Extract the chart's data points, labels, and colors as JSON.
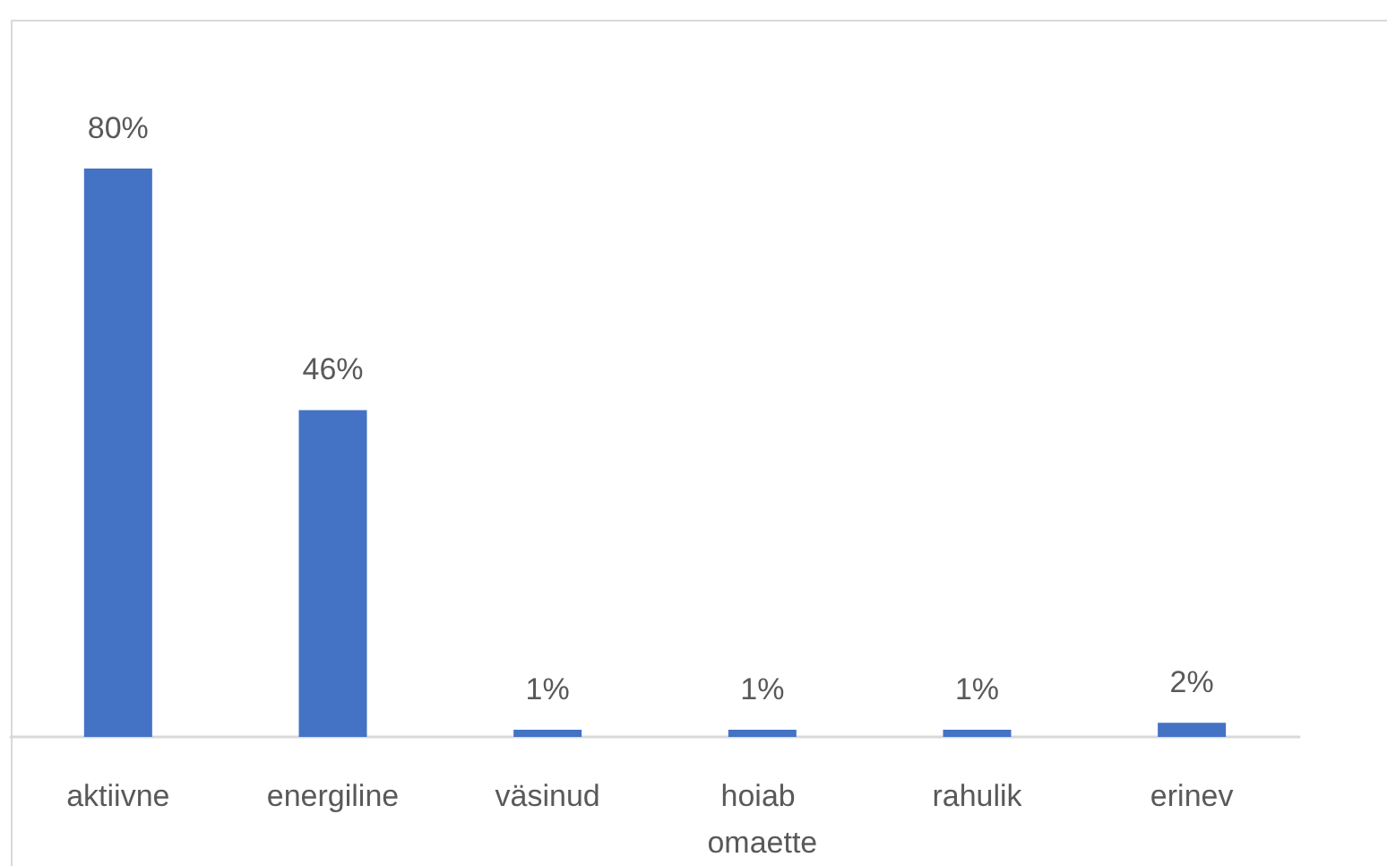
{
  "chart_data": {
    "type": "bar",
    "categories": [
      "aktiivne",
      "energiline",
      "väsinud",
      "hoiab omaette",
      "rahulik",
      "erinev"
    ],
    "values": [
      80,
      46,
      1,
      1,
      1,
      2
    ],
    "value_labels": [
      "80%",
      "46%",
      "1%",
      "1%",
      "1%",
      "2%"
    ],
    "color": "#4472c4"
  }
}
